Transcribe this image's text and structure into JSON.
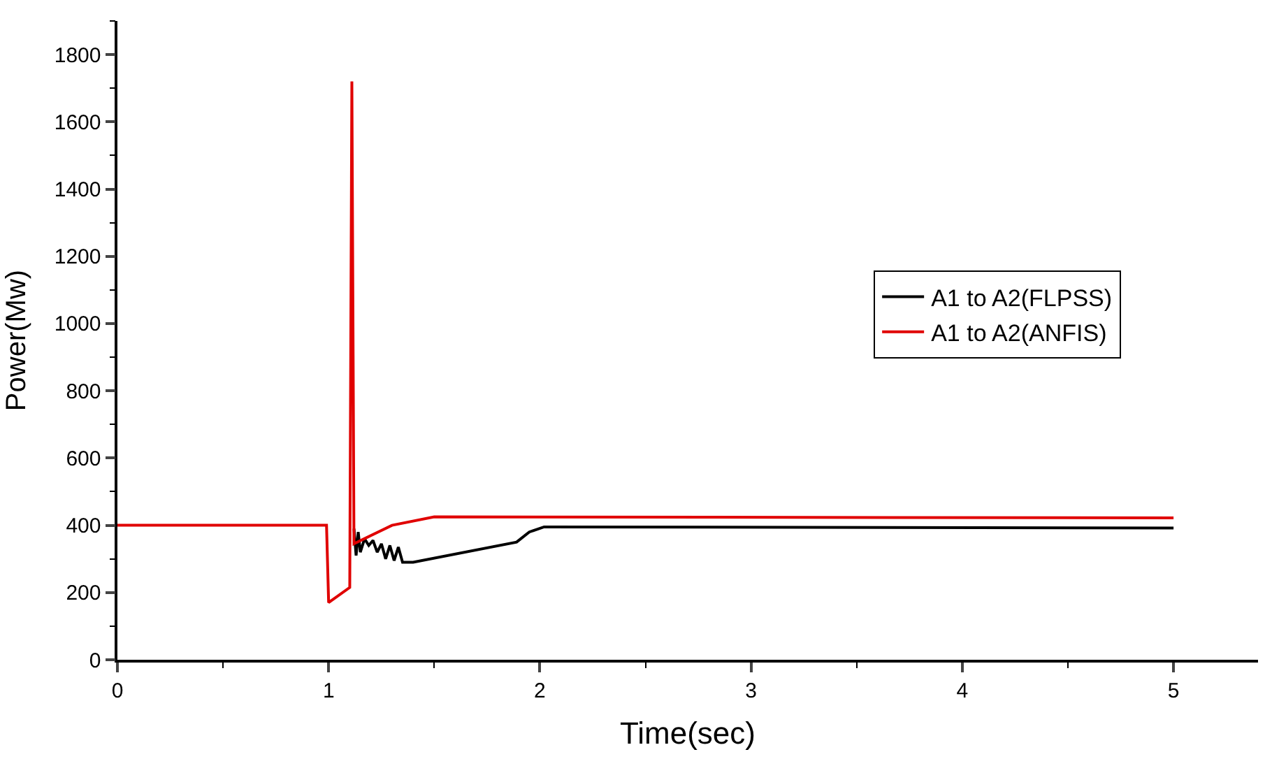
{
  "chart_data": {
    "type": "line",
    "xlabel": "Time(sec)",
    "ylabel": "Power(Mw)",
    "xlim": [
      0,
      5.4
    ],
    "xticks": [
      0,
      1,
      2,
      3,
      4,
      5
    ],
    "ylim": [
      0,
      1900
    ],
    "yticks": [
      0,
      200,
      400,
      600,
      800,
      1000,
      1200,
      1400,
      1600,
      1800
    ],
    "legend": "right",
    "marker": "none",
    "line_style": "solid",
    "series": [
      {
        "name": "A1 to A2(FLPSS)",
        "color": "#000000",
        "x": [
          1.12,
          1.13,
          1.14,
          1.15,
          1.17,
          1.19,
          1.21,
          1.23,
          1.25,
          1.27,
          1.29,
          1.31,
          1.33,
          1.35,
          1.4,
          1.89,
          1.95,
          2.02,
          5
        ],
        "values": [
          390,
          310,
          380,
          320,
          360,
          340,
          355,
          320,
          345,
          300,
          340,
          295,
          335,
          290,
          290,
          350,
          380,
          395,
          392
        ]
      },
      {
        "name": "A1 to A2(ANFIS)",
        "color": "#e00000",
        "x": [
          0,
          0.99,
          1.0,
          1.1,
          1.11,
          1.12,
          1.3,
          1.5,
          5
        ],
        "values": [
          400,
          400,
          170,
          215,
          1720,
          345,
          400,
          425,
          422
        ]
      }
    ]
  }
}
